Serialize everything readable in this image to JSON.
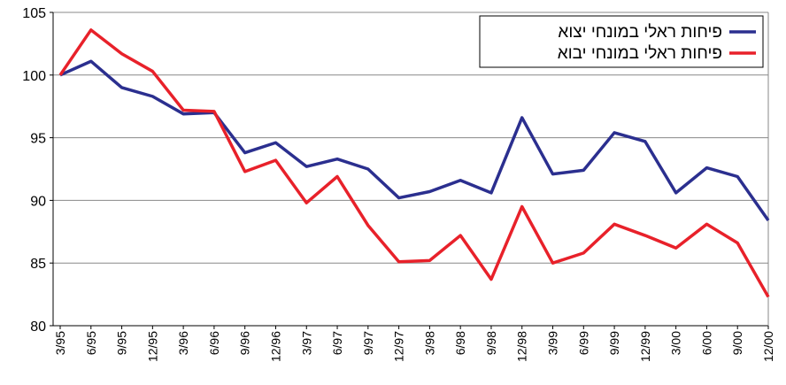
{
  "chart_data": {
    "type": "line",
    "categories": [
      "3/95",
      "6/95",
      "9/95",
      "12/95",
      "3/96",
      "6/96",
      "9/96",
      "12/96",
      "3/97",
      "6/97",
      "9/97",
      "12/97",
      "3/98",
      "6/98",
      "9/98",
      "12/98",
      "3/99",
      "6/99",
      "9/99",
      "12/99",
      "3/00",
      "6/00",
      "9/00",
      "12/00"
    ],
    "series": [
      {
        "name": "פיחות ראלי במונחי יצוא",
        "color": "#2b2f8f",
        "values": [
          100,
          101.1,
          99,
          98.3,
          96.9,
          97,
          93.8,
          94.6,
          92.7,
          93.3,
          92.5,
          90.2,
          90.7,
          91.6,
          90.6,
          96.6,
          92.1,
          92.4,
          95.4,
          94.7,
          90.6,
          92.6,
          91.9,
          88.4
        ]
      },
      {
        "name": "פיחות ראלי במונחי יבוא",
        "color": "#e8212a",
        "values": [
          100,
          103.6,
          101.7,
          100.3,
          97.2,
          97.1,
          92.3,
          93.2,
          89.8,
          91.9,
          88,
          85.1,
          85.2,
          87.2,
          83.7,
          89.5,
          85,
          85.8,
          88.1,
          87.2,
          86.2,
          88.1,
          86.6,
          82.3
        ]
      }
    ],
    "ylim": [
      80,
      105
    ],
    "yticks": [
      80,
      85,
      90,
      95,
      100,
      105
    ],
    "grid": true,
    "legend": "top-right"
  }
}
